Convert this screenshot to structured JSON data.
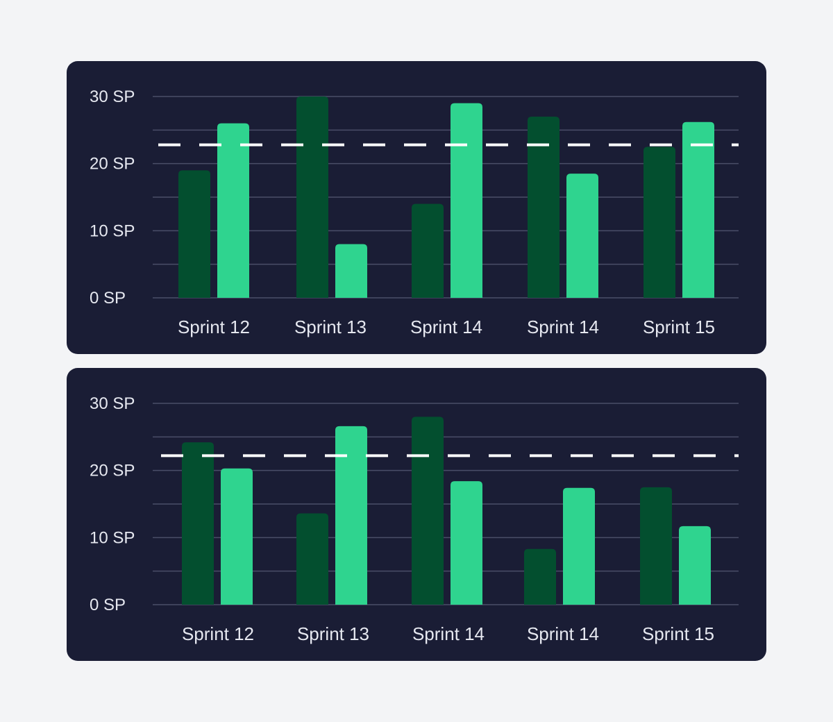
{
  "colors": {
    "page_background": "#f3f4f6",
    "panel_background": "#1a1d35",
    "gridline": "#4a4e68",
    "series_1": "#034f2f",
    "series_2": "#2fd48f",
    "reference_line": "#ffffff",
    "text": "#e6e8f0"
  },
  "chart_data": [
    {
      "type": "bar",
      "categories": [
        "Sprint 12",
        "Sprint 13",
        "Sprint 14",
        "Sprint 14",
        "Sprint 15"
      ],
      "series": [
        {
          "values": [
            19,
            30,
            14,
            27,
            22.5
          ]
        },
        {
          "values": [
            26,
            8,
            29,
            18.5,
            26.2
          ]
        }
      ],
      "reference_line": 22.8,
      "y_ticks": [
        "0 SP",
        "10 SP",
        "20 SP",
        "30 SP"
      ],
      "ylim": [
        0,
        30
      ],
      "grid": true,
      "xlabel": "",
      "ylabel": ""
    },
    {
      "type": "bar",
      "categories": [
        "Sprint 12",
        "Sprint 13",
        "Sprint 14",
        "Sprint 14",
        "Sprint 15"
      ],
      "series": [
        {
          "values": [
            24.2,
            13.6,
            28,
            8.3,
            17.5
          ]
        },
        {
          "values": [
            20.3,
            26.6,
            18.4,
            17.4,
            11.7
          ]
        }
      ],
      "reference_line": 22.2,
      "y_ticks": [
        "0 SP",
        "10 SP",
        "20 SP",
        "30 SP"
      ],
      "ylim": [
        0,
        30
      ],
      "grid": true,
      "xlabel": "",
      "ylabel": ""
    }
  ]
}
